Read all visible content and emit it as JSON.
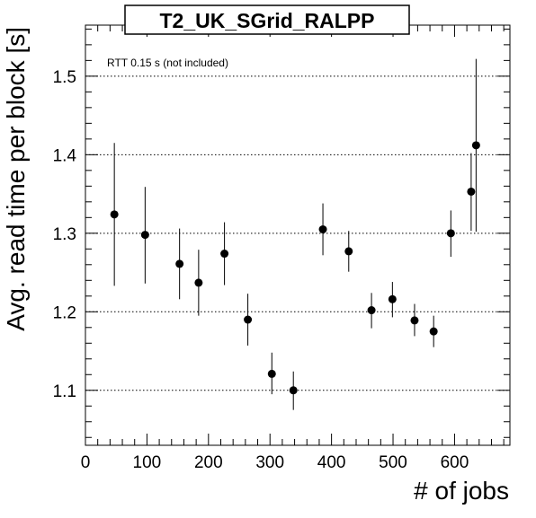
{
  "chart_data": {
    "type": "scatter",
    "title": "T2_UK_SGrid_RALPP",
    "xlabel": "# of jobs",
    "ylabel": "Avg. read time per block [s]",
    "annotation": "RTT 0.15 s (not included)",
    "xlim": [
      0,
      690
    ],
    "ylim": [
      1.03,
      1.565
    ],
    "xticks": [
      0,
      100,
      200,
      300,
      400,
      500,
      600
    ],
    "xtick_labels": [
      "0",
      "100",
      "200",
      "300",
      "400",
      "500",
      "600"
    ],
    "yticks": [
      1.1,
      1.2,
      1.3,
      1.4,
      1.5
    ],
    "ytick_labels": [
      "1.1",
      "1.2",
      "1.3",
      "1.4",
      "1.5"
    ],
    "grid_y": true,
    "grid_x": false,
    "series": [
      {
        "color": "#000000",
        "points": [
          {
            "x": 47,
            "y": 1.324,
            "ylo": 1.233,
            "yhi": 1.415
          },
          {
            "x": 97,
            "y": 1.298,
            "ylo": 1.236,
            "yhi": 1.359
          },
          {
            "x": 153,
            "y": 1.261,
            "ylo": 1.216,
            "yhi": 1.306
          },
          {
            "x": 184,
            "y": 1.237,
            "ylo": 1.195,
            "yhi": 1.279
          },
          {
            "x": 226,
            "y": 1.274,
            "ylo": 1.234,
            "yhi": 1.314
          },
          {
            "x": 264,
            "y": 1.19,
            "ylo": 1.157,
            "yhi": 1.223
          },
          {
            "x": 303,
            "y": 1.121,
            "ylo": 1.095,
            "yhi": 1.148
          },
          {
            "x": 338,
            "y": 1.1,
            "ylo": 1.075,
            "yhi": 1.124
          },
          {
            "x": 386,
            "y": 1.305,
            "ylo": 1.272,
            "yhi": 1.338
          },
          {
            "x": 428,
            "y": 1.277,
            "ylo": 1.251,
            "yhi": 1.303
          },
          {
            "x": 465,
            "y": 1.202,
            "ylo": 1.179,
            "yhi": 1.224
          },
          {
            "x": 499,
            "y": 1.216,
            "ylo": 1.193,
            "yhi": 1.238
          },
          {
            "x": 535,
            "y": 1.189,
            "ylo": 1.169,
            "yhi": 1.21
          },
          {
            "x": 566,
            "y": 1.175,
            "ylo": 1.155,
            "yhi": 1.195
          },
          {
            "x": 594,
            "y": 1.3,
            "ylo": 1.27,
            "yhi": 1.329
          },
          {
            "x": 627,
            "y": 1.353,
            "ylo": 1.303,
            "yhi": 1.402
          },
          {
            "x": 635,
            "y": 1.412,
            "ylo": 1.302,
            "yhi": 1.522
          }
        ]
      }
    ]
  }
}
